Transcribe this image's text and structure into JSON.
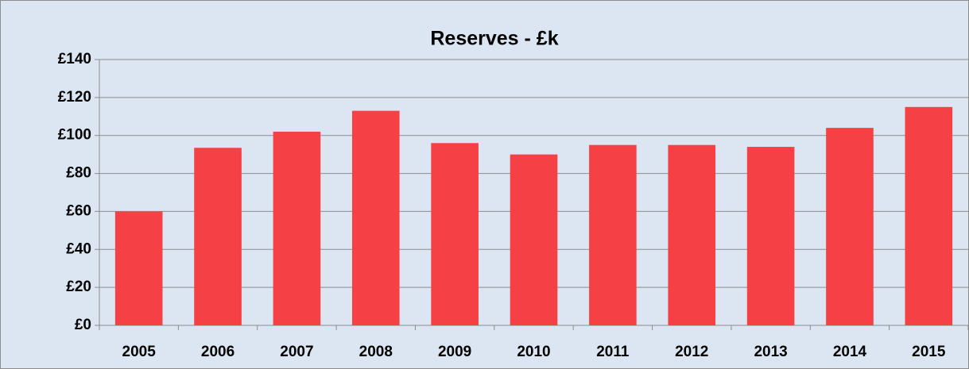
{
  "chart_data": {
    "type": "bar",
    "title": "Reserves - £k",
    "categories": [
      "2005",
      "2006",
      "2007",
      "2008",
      "2009",
      "2010",
      "2011",
      "2012",
      "2013",
      "2014",
      "2015"
    ],
    "values": [
      60,
      93.5,
      102,
      113,
      96,
      90,
      95,
      95,
      94,
      104,
      115
    ],
    "color": "#f54046",
    "ylim": [
      0,
      140
    ],
    "yticks": [
      {
        "value": 0,
        "label": "£0"
      },
      {
        "value": 20,
        "label": "£20"
      },
      {
        "value": 40,
        "label": "£40"
      },
      {
        "value": 60,
        "label": "£60"
      },
      {
        "value": 80,
        "label": "£80"
      },
      {
        "value": 100,
        "label": "£100"
      },
      {
        "value": 120,
        "label": "£120"
      },
      {
        "value": 140,
        "label": "£140"
      }
    ],
    "grid": true
  }
}
